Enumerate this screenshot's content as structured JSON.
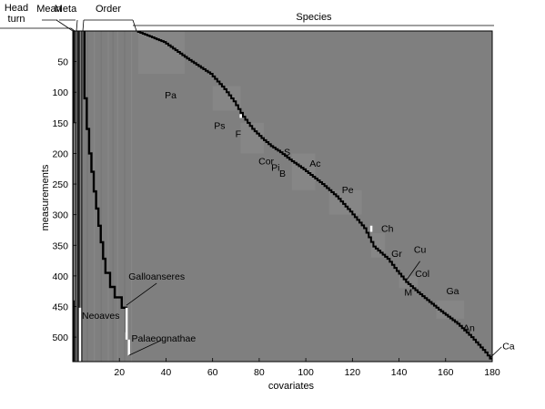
{
  "chart_data": {
    "type": "heatmap",
    "xlabel": "covariates",
    "ylabel": "measurements",
    "xlim": [
      0,
      180
    ],
    "ylim": [
      540,
      0
    ],
    "xticks": [
      20,
      40,
      60,
      80,
      100,
      120,
      140,
      160,
      180
    ],
    "yticks": [
      50,
      100,
      150,
      200,
      250,
      300,
      350,
      400,
      450,
      500
    ],
    "grid": false,
    "colors": {
      "background": "#7f7f7f",
      "frame": "#000000",
      "marks": "#000000",
      "highlight": "#ffffff"
    },
    "group_headers": [
      {
        "text": "Head\nturn",
        "cov_range": [
          0,
          1
        ]
      },
      {
        "text": "Mean",
        "cov_range": [
          1,
          2
        ]
      },
      {
        "text": "Meta",
        "cov_range": [
          2,
          4
        ]
      },
      {
        "text": "Order",
        "cov_range": [
          4,
          27
        ]
      },
      {
        "text": "Species",
        "cov_range": [
          27,
          180
        ]
      }
    ],
    "diagonal_steps": [
      [
        28,
        0
      ],
      [
        40,
        18
      ],
      [
        50,
        45
      ],
      [
        60,
        70
      ],
      [
        66,
        95
      ],
      [
        70,
        115
      ],
      [
        74,
        140
      ],
      [
        78,
        160
      ],
      [
        82,
        175
      ],
      [
        86,
        188
      ],
      [
        90,
        198
      ],
      [
        94,
        210
      ],
      [
        100,
        226
      ],
      [
        108,
        250
      ],
      [
        114,
        270
      ],
      [
        120,
        295
      ],
      [
        126,
        322
      ],
      [
        130,
        352
      ],
      [
        136,
        372
      ],
      [
        140,
        392
      ],
      [
        144,
        410
      ],
      [
        150,
        430
      ],
      [
        158,
        455
      ],
      [
        166,
        478
      ],
      [
        172,
        500
      ],
      [
        178,
        525
      ],
      [
        180,
        535
      ]
    ],
    "order_steps": [
      [
        5,
        0
      ],
      [
        5,
        60
      ],
      [
        6,
        110
      ],
      [
        7,
        160
      ],
      [
        8,
        200
      ],
      [
        9,
        230
      ],
      [
        10,
        262
      ],
      [
        11,
        290
      ],
      [
        12,
        318
      ],
      [
        13,
        345
      ],
      [
        14,
        372
      ],
      [
        16,
        395
      ],
      [
        18,
        418
      ],
      [
        21,
        435
      ],
      [
        23,
        452
      ]
    ],
    "highlights": [
      {
        "x": 23,
        "y": [
          452,
          504
        ]
      },
      {
        "x": 24,
        "y": [
          504,
          530
        ]
      },
      {
        "x": 3,
        "y": [
          452,
          540
        ]
      },
      {
        "x": 72,
        "y": [
          136,
          142
        ]
      },
      {
        "x": 128,
        "y": [
          318,
          328
        ]
      }
    ],
    "annotations": [
      {
        "text": "Pa",
        "x": 42,
        "y": 110
      },
      {
        "text": "Ps",
        "x": 63,
        "y": 160
      },
      {
        "text": "F",
        "x": 71,
        "y": 173
      },
      {
        "text": "S",
        "x": 92,
        "y": 203
      },
      {
        "text": "Cor",
        "x": 83,
        "y": 218
      },
      {
        "text": "Pi",
        "x": 87,
        "y": 228
      },
      {
        "text": "B",
        "x": 90,
        "y": 238
      },
      {
        "text": "Ac",
        "x": 104,
        "y": 222
      },
      {
        "text": "Pe",
        "x": 118,
        "y": 265
      },
      {
        "text": "Ch",
        "x": 135,
        "y": 328
      },
      {
        "text": "Gr",
        "x": 139,
        "y": 369
      },
      {
        "text": "Cu",
        "x": 149,
        "y": 362
      },
      {
        "text": "Col",
        "x": 150,
        "y": 402
      },
      {
        "text": "M",
        "x": 144,
        "y": 432
      },
      {
        "text": "Ga",
        "x": 163,
        "y": 430
      },
      {
        "text": "An",
        "x": 170,
        "y": 490
      },
      {
        "text": "Ca",
        "x": 187,
        "y": 520
      },
      {
        "text": "Galloanseres",
        "x": 36,
        "y": 406
      },
      {
        "text": "Neoaves",
        "x": 12,
        "y": 470
      },
      {
        "text": "Palaeognathae",
        "x": 39,
        "y": 507
      }
    ]
  }
}
